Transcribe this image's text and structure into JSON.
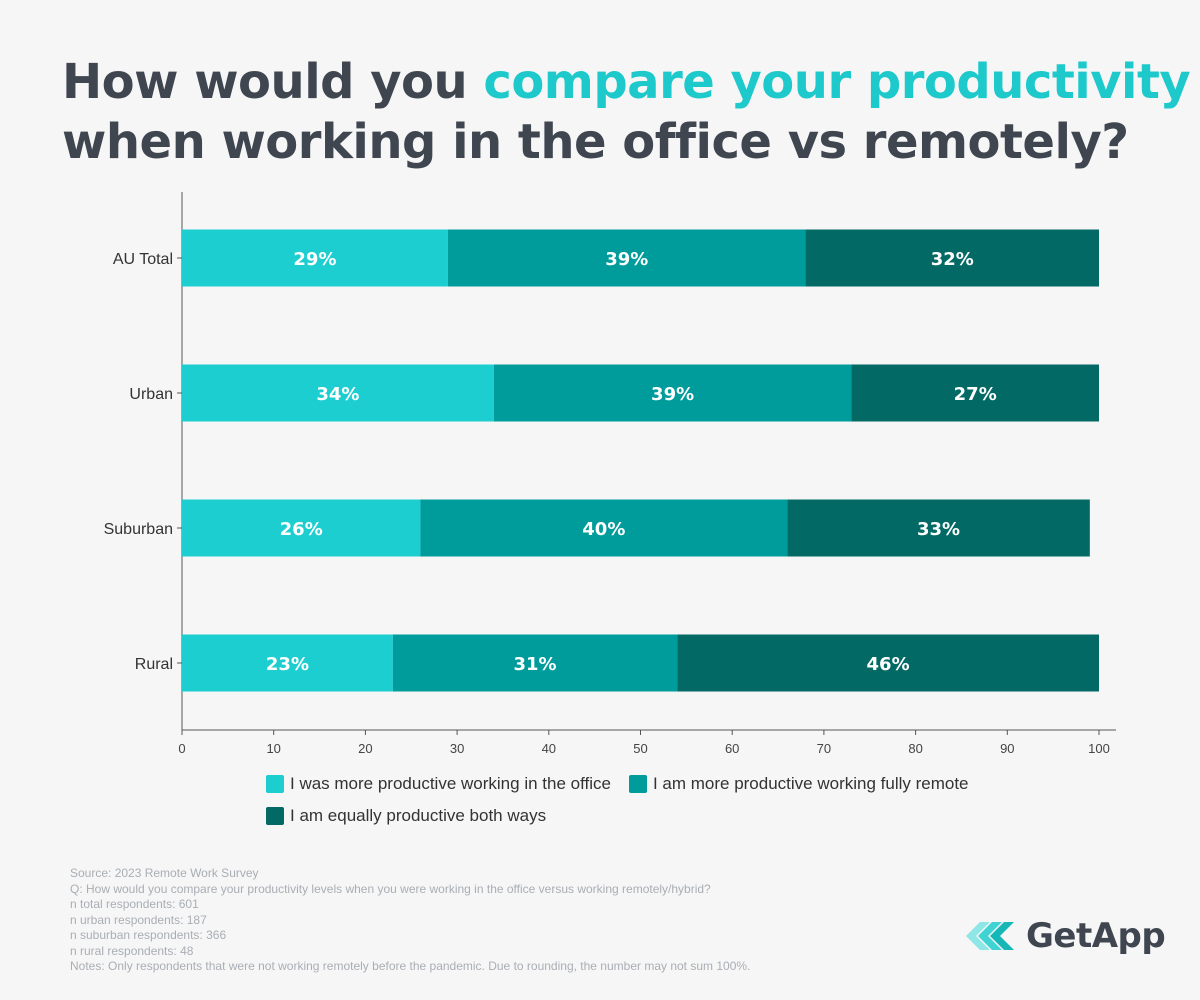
{
  "title": {
    "prefix": "How would you ",
    "highlight": "compare your productivity",
    "line2": "when working in the office vs remotely?"
  },
  "colors": {
    "title": "#3f4650",
    "accent": "#1dc9cb",
    "office": "#1dced1",
    "remote": "#009b9b",
    "equal": "#036965"
  },
  "chart_data": {
    "type": "bar",
    "orientation": "horizontal",
    "stacked": true,
    "categories": [
      "AU Total",
      "Urban",
      "Suburban",
      "Rural"
    ],
    "series": [
      {
        "name": "I was more productive working in the office",
        "values": [
          29,
          34,
          26,
          23
        ],
        "color": "#1dced1"
      },
      {
        "name": "I am more productive working fully remote",
        "values": [
          39,
          39,
          40,
          31
        ],
        "color": "#009b9b"
      },
      {
        "name": "I am equally productive both ways",
        "values": [
          32,
          27,
          33,
          46
        ],
        "color": "#036965"
      }
    ],
    "value_labels": [
      [
        "29%",
        "34%",
        "26%",
        "23%"
      ],
      [
        "39%",
        "39%",
        "40%",
        "31%"
      ],
      [
        "32%",
        "27%",
        "33%",
        "46%"
      ]
    ],
    "xlim": [
      0,
      100
    ],
    "xticks": [
      0,
      10,
      20,
      30,
      40,
      50,
      60,
      70,
      80,
      90,
      100
    ],
    "grid": false,
    "legend_position": "bottom"
  },
  "notes": [
    "Source: 2023 Remote Work Survey",
    "Q: How would you compare your productivity levels when you were working in the office versus working remotely/hybrid?",
    "n total respondents: 601",
    "n urban respondents: 187",
    "n suburban respondents: 366",
    "n rural respondents: 48",
    "Notes: Only respondents that were not working remotely before the pandemic. Due to rounding, the number may not sum 100%."
  ],
  "logo": {
    "text": "GetApp",
    "icon": "getapp-chevrons-icon"
  }
}
